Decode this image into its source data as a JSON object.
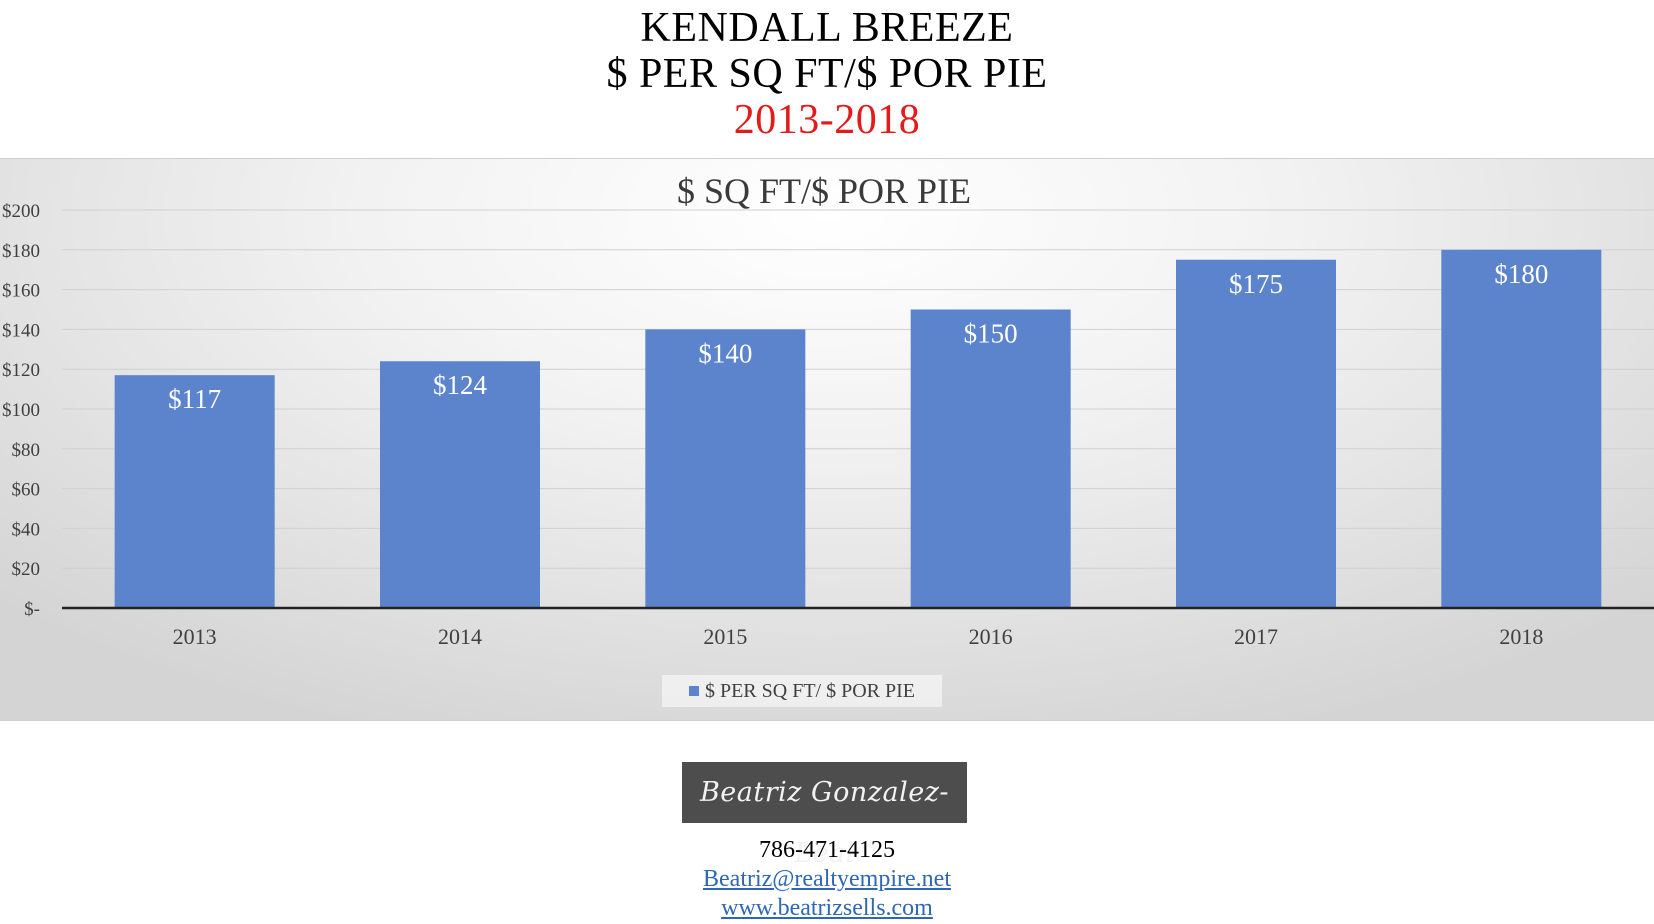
{
  "header": {
    "title_line1": "KENDALL BREEZE",
    "title_line2": "$ PER SQ FT/$ POR PIE",
    "title_years": "2013-2018"
  },
  "colors": {
    "bar": "#5b84cc",
    "years_text": "#e31b1b",
    "link": "#2e67b5",
    "logo_bg": "#4d4d4d"
  },
  "chart_data": {
    "type": "bar",
    "title": "$ SQ FT/$ POR PIE",
    "categories": [
      "2013",
      "2014",
      "2015",
      "2016",
      "2017",
      "2018"
    ],
    "series": [
      {
        "name": "$ PER SQ FT/ $ POR PIE",
        "values": [
          117,
          124,
          140,
          150,
          175,
          180
        ]
      }
    ],
    "data_labels": [
      "$117",
      "$124",
      "$140",
      "$150",
      "$175",
      "$180"
    ],
    "yticks": [
      0,
      20,
      40,
      60,
      80,
      100,
      120,
      140,
      160,
      180,
      200
    ],
    "ytick_labels": [
      "$-",
      "$20",
      "$40",
      "$60",
      "$80",
      "$100",
      "$120",
      "$140",
      "$160",
      "$180",
      "$200"
    ],
    "ylim": [
      0,
      200
    ],
    "grid": true,
    "legend": "bottom"
  },
  "footer": {
    "logo_text": "Beatriz Gonzalez-Leal",
    "phone": "786-471-4125",
    "email": "Beatriz@realtyempire.net",
    "website": "www.beatrizsells.com"
  }
}
